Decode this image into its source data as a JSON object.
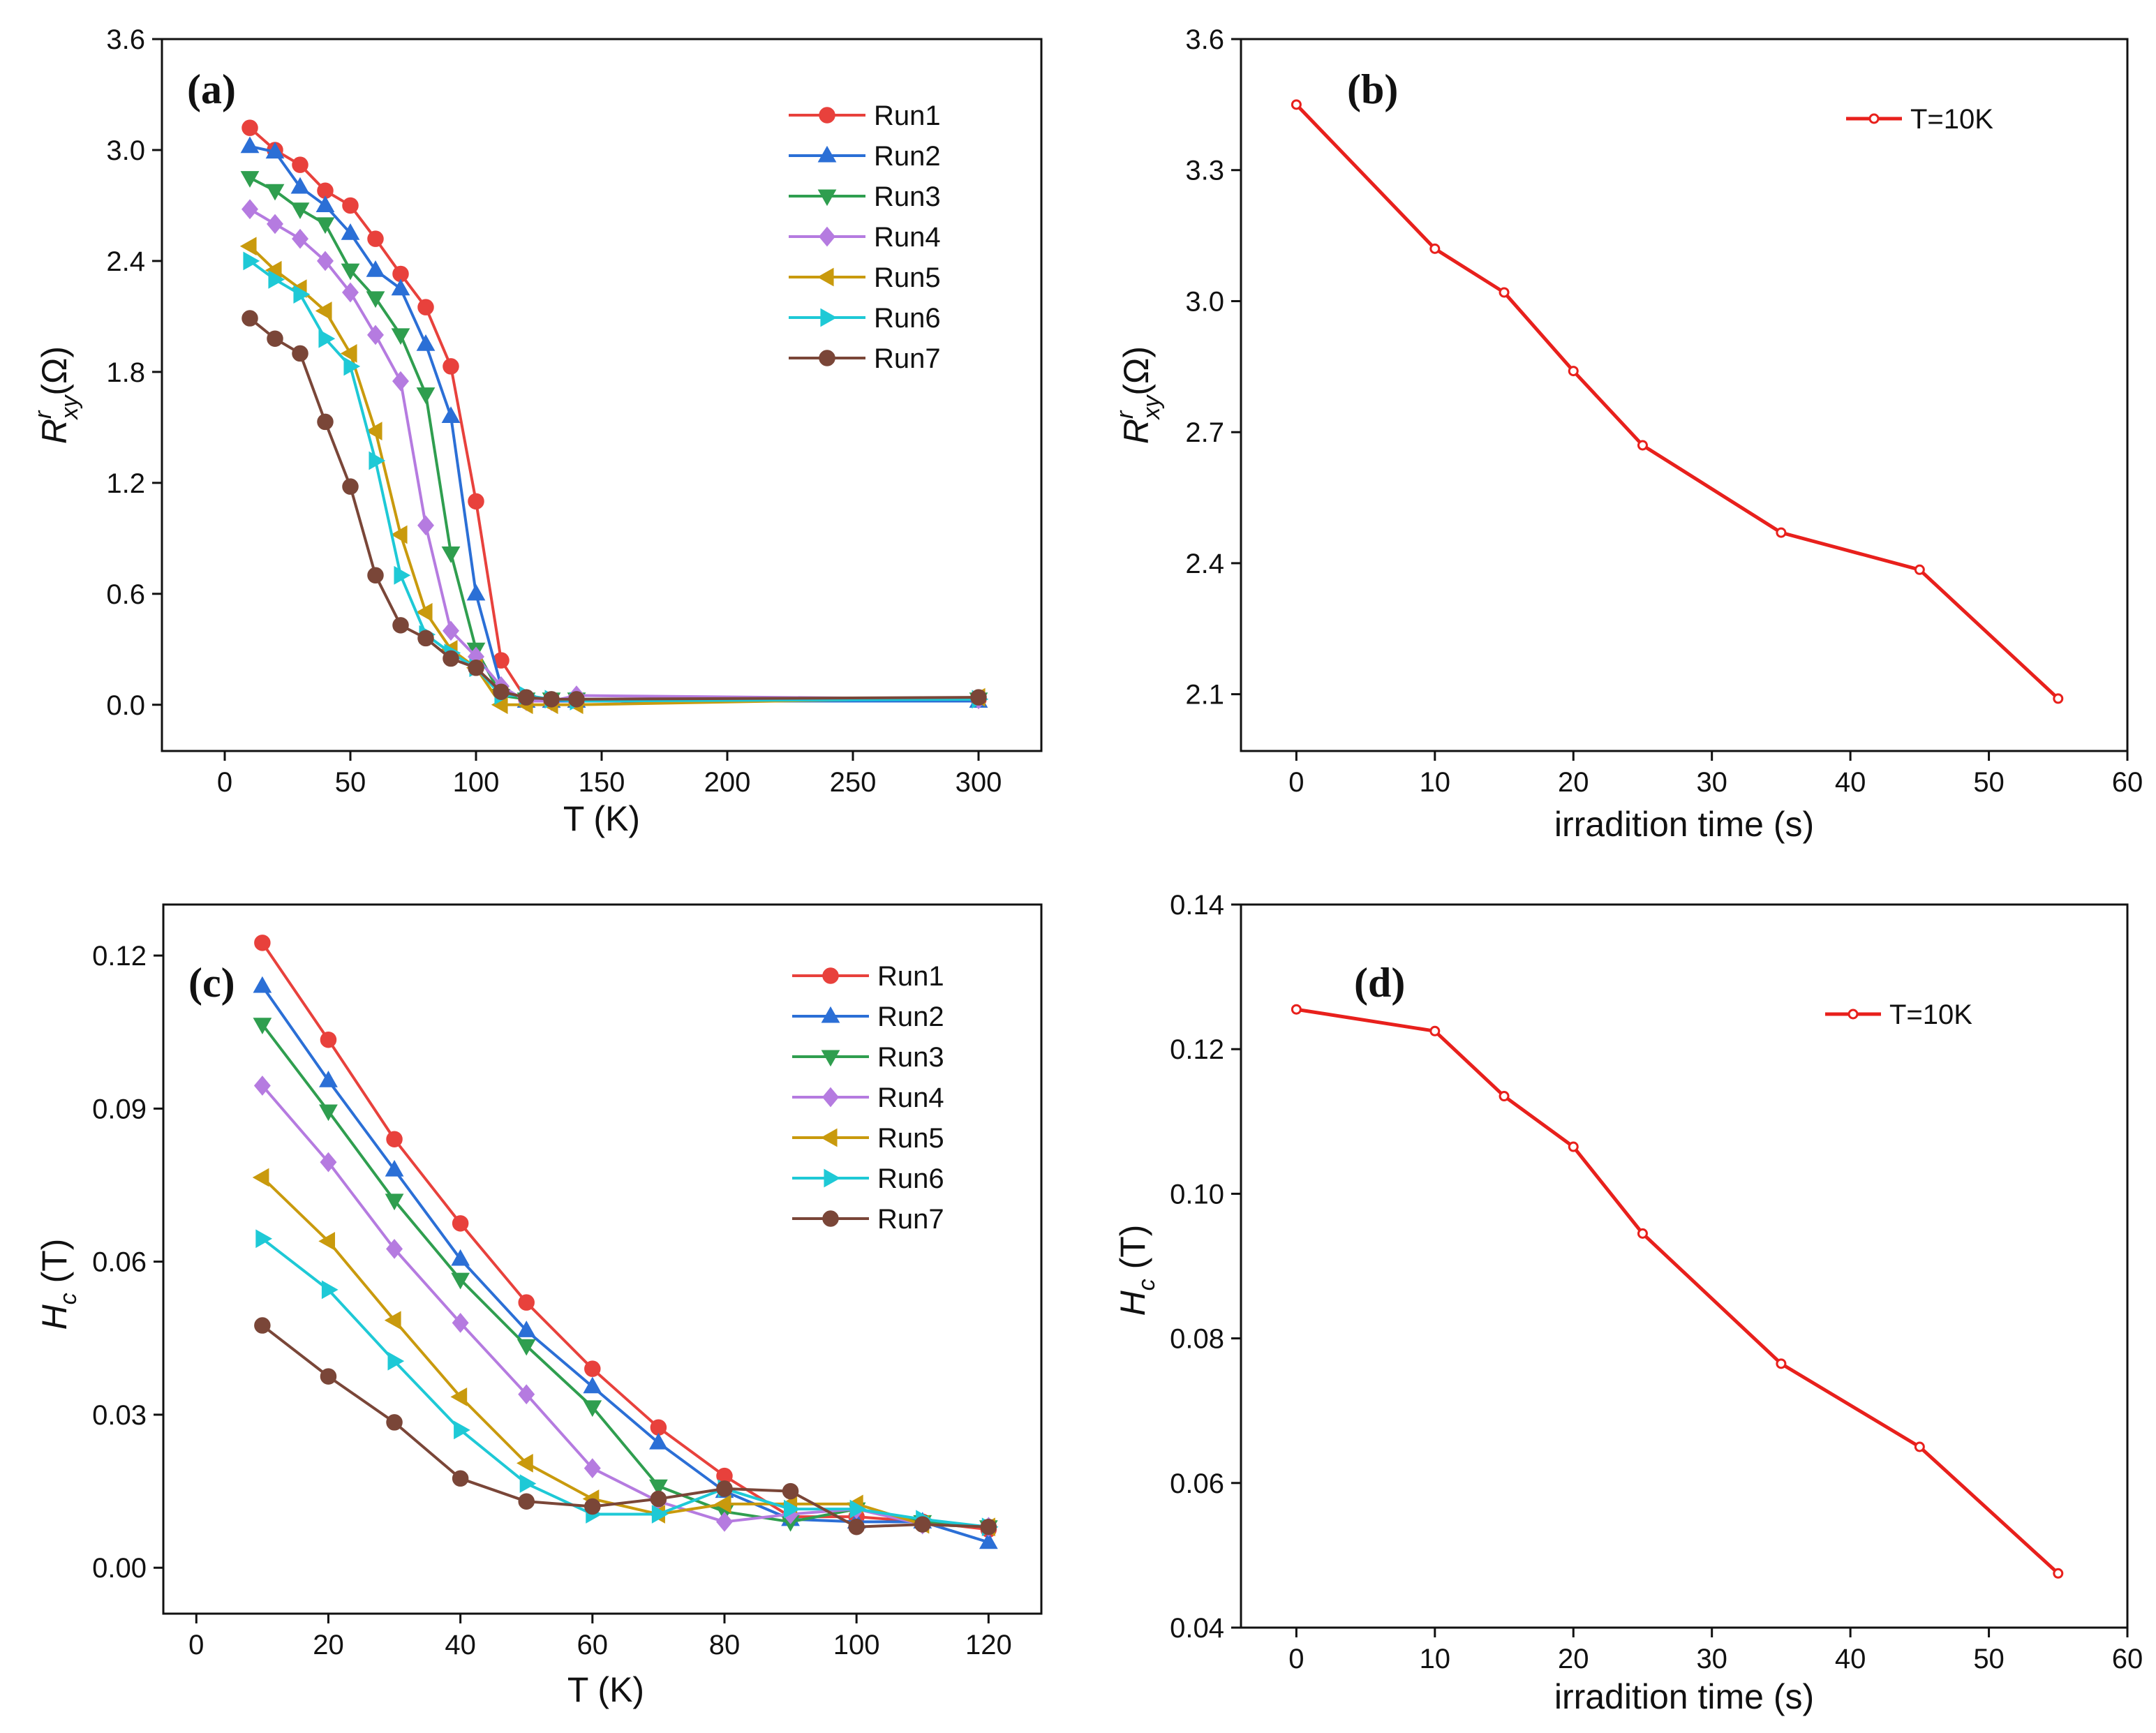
{
  "series_colors": {
    "Run1": "#e8413c",
    "Run2": "#2b6fd6",
    "Run3": "#2f9e4f",
    "Run4": "#b57be0",
    "Run5": "#c99a0d",
    "Run6": "#1ec9d6",
    "Run7": "#7a4638",
    "T=10K": "#e8201c"
  },
  "series_markers": {
    "Run1": "circle",
    "Run2": "triangle-up",
    "Run3": "triangle-down",
    "Run4": "diamond",
    "Run5": "triangle-left",
    "Run6": "triangle-right",
    "Run7": "circle",
    "T=10K": "small-circle"
  },
  "chart_data": [
    {
      "id": "a",
      "panel_label": "(a)",
      "type": "line",
      "xlabel": "T (K)",
      "ylabel_main": "R",
      "ylabel_sup": "r",
      "ylabel_sub": "xy",
      "ylabel_tail": "(Ω)",
      "xlim": [
        -25,
        325
      ],
      "ylim": [
        -0.25,
        3.6
      ],
      "xticks": [
        0,
        50,
        100,
        150,
        200,
        250,
        300
      ],
      "yticks": [
        0.0,
        0.6,
        1.2,
        1.8,
        2.4,
        3.0,
        3.6
      ],
      "ytick_labels": [
        "0.0",
        "0.6",
        "1.2",
        "1.8",
        "2.4",
        "3.0",
        "3.6"
      ],
      "xtick_labels": [
        "0",
        "50",
        "100",
        "150",
        "200",
        "250",
        "300"
      ],
      "legend_position": "top-right",
      "x": [
        10,
        20,
        30,
        40,
        50,
        60,
        70,
        80,
        90,
        100,
        110,
        120,
        130,
        140,
        300
      ],
      "series": [
        {
          "name": "Run1",
          "values": [
            3.12,
            3.0,
            2.92,
            2.78,
            2.7,
            2.52,
            2.33,
            2.15,
            1.83,
            1.1,
            0.24,
            0.03,
            0.02,
            0.02,
            0.03
          ]
        },
        {
          "name": "Run2",
          "values": [
            3.02,
            2.99,
            2.8,
            2.7,
            2.55,
            2.35,
            2.25,
            1.95,
            1.56,
            0.6,
            0.1,
            0.02,
            0.02,
            0.02,
            0.02
          ]
        },
        {
          "name": "Run3",
          "values": [
            2.85,
            2.78,
            2.68,
            2.6,
            2.35,
            2.2,
            2.0,
            1.68,
            0.82,
            0.3,
            0.05,
            0.03,
            0.03,
            0.03,
            0.03
          ]
        },
        {
          "name": "Run4",
          "values": [
            2.68,
            2.6,
            2.52,
            2.4,
            2.23,
            2.0,
            1.75,
            0.97,
            0.4,
            0.26,
            0.1,
            0.02,
            0.02,
            0.05,
            0.03
          ]
        },
        {
          "name": "Run5",
          "values": [
            2.48,
            2.35,
            2.25,
            2.13,
            1.9,
            1.48,
            0.92,
            0.5,
            0.3,
            0.2,
            0.0,
            0.0,
            0.0,
            0.0,
            0.04
          ]
        },
        {
          "name": "Run6",
          "values": [
            2.4,
            2.3,
            2.22,
            1.98,
            1.83,
            1.32,
            0.7,
            0.38,
            0.28,
            0.2,
            0.05,
            0.05,
            0.03,
            0.02,
            0.03
          ]
        },
        {
          "name": "Run7",
          "values": [
            2.09,
            1.98,
            1.9,
            1.53,
            1.18,
            0.7,
            0.43,
            0.36,
            0.25,
            0.2,
            0.07,
            0.04,
            0.03,
            0.03,
            0.04
          ]
        }
      ]
    },
    {
      "id": "b",
      "panel_label": "(b)",
      "type": "line",
      "xlabel": "irradition time (s)",
      "ylabel_main": "R",
      "ylabel_sup": "r",
      "ylabel_sub": "xy",
      "ylabel_tail": "(Ω)",
      "xlim": [
        -4,
        60
      ],
      "ylim": [
        1.97,
        3.6
      ],
      "xticks": [
        0,
        10,
        20,
        30,
        40,
        50,
        60
      ],
      "yticks": [
        2.1,
        2.4,
        2.7,
        3.0,
        3.3,
        3.6
      ],
      "ytick_labels": [
        "2.1",
        "2.4",
        "2.7",
        "3.0",
        "3.3",
        "3.6"
      ],
      "xtick_labels": [
        "0",
        "10",
        "20",
        "30",
        "40",
        "50",
        "60"
      ],
      "legend_position": "top-right",
      "x": [
        0,
        10,
        15,
        20,
        25,
        35,
        45,
        55
      ],
      "series": [
        {
          "name": "T=10K",
          "values": [
            3.45,
            3.12,
            3.02,
            2.84,
            2.67,
            2.47,
            2.385,
            2.09
          ]
        }
      ]
    },
    {
      "id": "c",
      "panel_label": "(c)",
      "type": "line",
      "xlabel": "T (K)",
      "ylabel_main": "H",
      "ylabel_sub": "c",
      "ylabel_tail": " (T)",
      "xlim": [
        -5,
        128
      ],
      "ylim": [
        -0.009,
        0.13
      ],
      "xticks": [
        0,
        20,
        40,
        60,
        80,
        100,
        120
      ],
      "yticks": [
        0.0,
        0.03,
        0.06,
        0.09,
        0.12
      ],
      "ytick_labels": [
        "0.00",
        "0.03",
        "0.06",
        "0.09",
        "0.12"
      ],
      "xtick_labels": [
        "0",
        "20",
        "40",
        "60",
        "80",
        "100",
        "120"
      ],
      "legend_position": "top-right",
      "x": [
        10,
        20,
        30,
        40,
        50,
        60,
        70,
        80,
        90,
        100,
        110,
        120
      ],
      "series": [
        {
          "name": "Run1",
          "values": [
            0.1225,
            0.1035,
            0.084,
            0.0675,
            0.052,
            0.039,
            0.0275,
            0.018,
            0.01,
            0.01,
            0.009,
            0.0075
          ]
        },
        {
          "name": "Run2",
          "values": [
            0.114,
            0.0955,
            0.078,
            0.0605,
            0.0465,
            0.0355,
            0.0245,
            0.015,
            0.0095,
            0.009,
            0.009,
            0.005
          ]
        },
        {
          "name": "Run3",
          "values": [
            0.1065,
            0.0895,
            0.072,
            0.0565,
            0.0435,
            0.0315,
            0.016,
            0.011,
            0.009,
            0.0115,
            0.009,
            0.008
          ]
        },
        {
          "name": "Run4",
          "values": [
            0.0945,
            0.0795,
            0.0625,
            0.048,
            0.034,
            0.0195,
            0.013,
            0.009,
            0.0105,
            0.0115,
            0.0085,
            0.008
          ]
        },
        {
          "name": "Run5",
          "values": [
            0.0765,
            0.064,
            0.0485,
            0.0335,
            0.0205,
            0.0135,
            0.0105,
            0.0125,
            0.0125,
            0.0125,
            0.0085,
            0.008
          ]
        },
        {
          "name": "Run6",
          "values": [
            0.0645,
            0.0545,
            0.0405,
            0.027,
            0.0165,
            0.0105,
            0.0105,
            0.0155,
            0.0115,
            0.0115,
            0.0095,
            0.008
          ]
        },
        {
          "name": "Run7",
          "values": [
            0.0475,
            0.0375,
            0.0285,
            0.0175,
            0.013,
            0.012,
            0.0135,
            0.0155,
            0.015,
            0.008,
            0.0085,
            0.008
          ]
        }
      ]
    },
    {
      "id": "d",
      "panel_label": "(d)",
      "type": "line",
      "xlabel": "irradition time (s)",
      "ylabel_main": "H",
      "ylabel_sub": "c",
      "ylabel_tail": " (T)",
      "xlim": [
        -4,
        60
      ],
      "ylim": [
        0.04,
        0.14
      ],
      "xticks": [
        0,
        10,
        20,
        30,
        40,
        50,
        60
      ],
      "yticks": [
        0.04,
        0.06,
        0.08,
        0.1,
        0.12,
        0.14
      ],
      "ytick_labels": [
        "0.04",
        "0.06",
        "0.08",
        "0.10",
        "0.12",
        "0.14"
      ],
      "xtick_labels": [
        "0",
        "10",
        "20",
        "30",
        "40",
        "50",
        "60"
      ],
      "legend_position": "top-right",
      "x": [
        0,
        10,
        15,
        20,
        25,
        35,
        45,
        55
      ],
      "series": [
        {
          "name": "T=10K",
          "values": [
            0.1255,
            0.1225,
            0.1135,
            0.1065,
            0.0945,
            0.0765,
            0.065,
            0.0475
          ]
        }
      ]
    }
  ]
}
